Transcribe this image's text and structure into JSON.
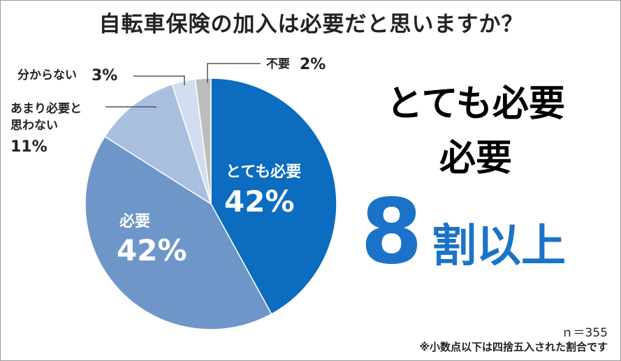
{
  "chart_data": {
    "type": "pie",
    "title": "自転車保険の加入は必要だと思いますか？",
    "slices": [
      {
        "label": "とても必要",
        "value": 42,
        "display": "42%",
        "color": "#0b6cc0"
      },
      {
        "label": "必要",
        "value": 42,
        "display": "42%",
        "color": "#6f96c8"
      },
      {
        "label": "あまり必要と思わない",
        "label_lines": [
          "あまり必要と",
          "思わない"
        ],
        "value": 11,
        "display": "11%",
        "color": "#a9bfe0"
      },
      {
        "label": "分からない",
        "value": 3,
        "display": "3%",
        "color": "#d2deef"
      },
      {
        "label": "不要",
        "value": 2,
        "display": "2%",
        "color": "#bdbdbd"
      }
    ]
  },
  "callout": {
    "line1": "とても必要",
    "line2": "必要",
    "big_number": "8",
    "suffix": "割以上",
    "accent_color": "#1a73c8"
  },
  "notes": {
    "sample_size": "ｎ＝355",
    "footnote": "※小数点以下は四捨五入された割合です"
  }
}
